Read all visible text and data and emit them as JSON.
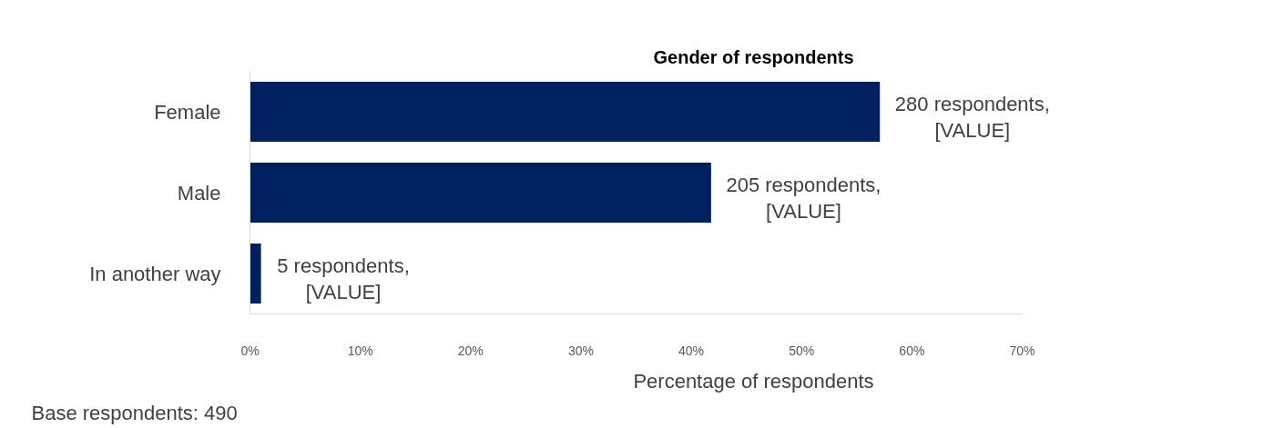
{
  "chart_data": {
    "type": "bar",
    "orientation": "horizontal",
    "title": "Gender of respondents",
    "xlabel": "Percentage of respondents",
    "categories": [
      "Female",
      "Male",
      "In another way"
    ],
    "values": [
      57.1,
      41.8,
      1.0
    ],
    "color": "#002060",
    "xlim": [
      0,
      70
    ],
    "xticks": [
      {
        "value": 0,
        "label": "0%"
      },
      {
        "value": 10,
        "label": "10%"
      },
      {
        "value": 20,
        "label": "20%"
      },
      {
        "value": 30,
        "label": "30%"
      },
      {
        "value": 40,
        "label": "40%"
      },
      {
        "value": 50,
        "label": "50%"
      },
      {
        "value": 60,
        "label": "60%"
      },
      {
        "value": 70,
        "label": "70%"
      }
    ],
    "grid": false,
    "annotations": [
      {
        "text": "280 respondents,\n[VALUE]",
        "x": 57.1,
        "y": "Female"
      },
      {
        "text": "205 respondents,\n[VALUE]",
        "x": 41.8,
        "y": "Male"
      },
      {
        "text": "5 respondents,\n[VALUE]",
        "x": 1.0,
        "y": "In another way"
      },
      "Base respondents: 490"
    ]
  }
}
